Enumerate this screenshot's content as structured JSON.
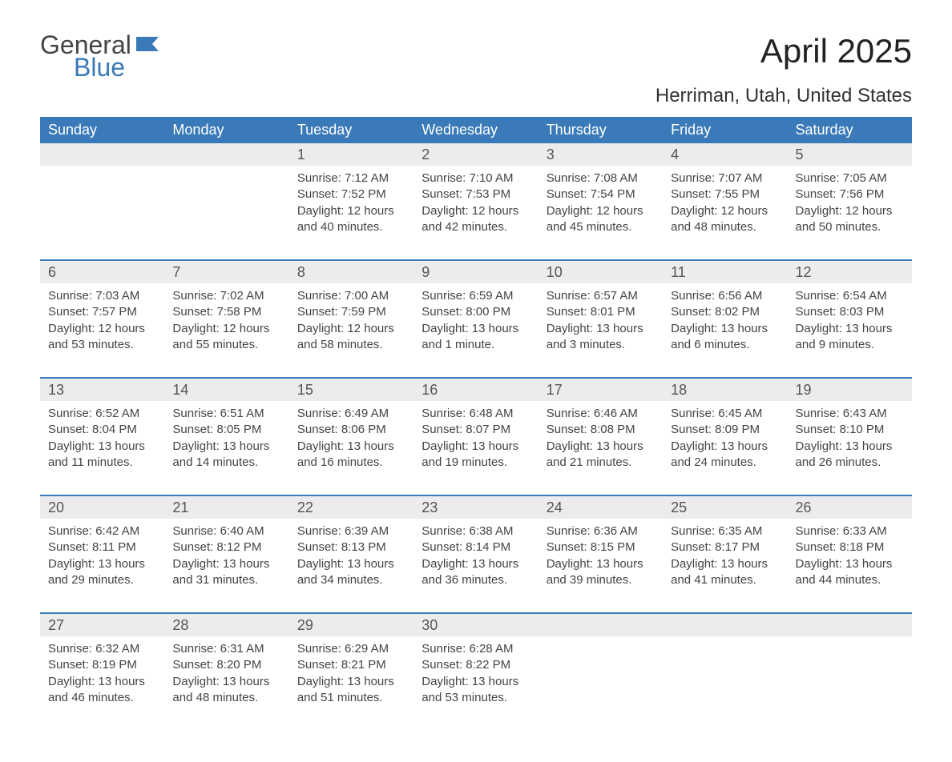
{
  "logo": {
    "general": "General",
    "blue": "Blue",
    "flag_color": "#3a7ab8"
  },
  "title": "April 2025",
  "location": "Herriman, Utah, United States",
  "day_headers": [
    "Sunday",
    "Monday",
    "Tuesday",
    "Wednesday",
    "Thursday",
    "Friday",
    "Saturday"
  ],
  "header_bg": "#3a7ab8",
  "header_fg": "#ffffff",
  "daynum_bg": "#ececec",
  "sep_color": "#3a7ab8",
  "weeks": [
    {
      "nums": [
        "",
        "",
        "1",
        "2",
        "3",
        "4",
        "5"
      ],
      "details": [
        "",
        "",
        "Sunrise: 7:12 AM\nSunset: 7:52 PM\nDaylight: 12 hours and 40 minutes.",
        "Sunrise: 7:10 AM\nSunset: 7:53 PM\nDaylight: 12 hours and 42 minutes.",
        "Sunrise: 7:08 AM\nSunset: 7:54 PM\nDaylight: 12 hours and 45 minutes.",
        "Sunrise: 7:07 AM\nSunset: 7:55 PM\nDaylight: 12 hours and 48 minutes.",
        "Sunrise: 7:05 AM\nSunset: 7:56 PM\nDaylight: 12 hours and 50 minutes."
      ]
    },
    {
      "nums": [
        "6",
        "7",
        "8",
        "9",
        "10",
        "11",
        "12"
      ],
      "details": [
        "Sunrise: 7:03 AM\nSunset: 7:57 PM\nDaylight: 12 hours and 53 minutes.",
        "Sunrise: 7:02 AM\nSunset: 7:58 PM\nDaylight: 12 hours and 55 minutes.",
        "Sunrise: 7:00 AM\nSunset: 7:59 PM\nDaylight: 12 hours and 58 minutes.",
        "Sunrise: 6:59 AM\nSunset: 8:00 PM\nDaylight: 13 hours and 1 minute.",
        "Sunrise: 6:57 AM\nSunset: 8:01 PM\nDaylight: 13 hours and 3 minutes.",
        "Sunrise: 6:56 AM\nSunset: 8:02 PM\nDaylight: 13 hours and 6 minutes.",
        "Sunrise: 6:54 AM\nSunset: 8:03 PM\nDaylight: 13 hours and 9 minutes."
      ]
    },
    {
      "nums": [
        "13",
        "14",
        "15",
        "16",
        "17",
        "18",
        "19"
      ],
      "details": [
        "Sunrise: 6:52 AM\nSunset: 8:04 PM\nDaylight: 13 hours and 11 minutes.",
        "Sunrise: 6:51 AM\nSunset: 8:05 PM\nDaylight: 13 hours and 14 minutes.",
        "Sunrise: 6:49 AM\nSunset: 8:06 PM\nDaylight: 13 hours and 16 minutes.",
        "Sunrise: 6:48 AM\nSunset: 8:07 PM\nDaylight: 13 hours and 19 minutes.",
        "Sunrise: 6:46 AM\nSunset: 8:08 PM\nDaylight: 13 hours and 21 minutes.",
        "Sunrise: 6:45 AM\nSunset: 8:09 PM\nDaylight: 13 hours and 24 minutes.",
        "Sunrise: 6:43 AM\nSunset: 8:10 PM\nDaylight: 13 hours and 26 minutes."
      ]
    },
    {
      "nums": [
        "20",
        "21",
        "22",
        "23",
        "24",
        "25",
        "26"
      ],
      "details": [
        "Sunrise: 6:42 AM\nSunset: 8:11 PM\nDaylight: 13 hours and 29 minutes.",
        "Sunrise: 6:40 AM\nSunset: 8:12 PM\nDaylight: 13 hours and 31 minutes.",
        "Sunrise: 6:39 AM\nSunset: 8:13 PM\nDaylight: 13 hours and 34 minutes.",
        "Sunrise: 6:38 AM\nSunset: 8:14 PM\nDaylight: 13 hours and 36 minutes.",
        "Sunrise: 6:36 AM\nSunset: 8:15 PM\nDaylight: 13 hours and 39 minutes.",
        "Sunrise: 6:35 AM\nSunset: 8:17 PM\nDaylight: 13 hours and 41 minutes.",
        "Sunrise: 6:33 AM\nSunset: 8:18 PM\nDaylight: 13 hours and 44 minutes."
      ]
    },
    {
      "nums": [
        "27",
        "28",
        "29",
        "30",
        "",
        "",
        ""
      ],
      "details": [
        "Sunrise: 6:32 AM\nSunset: 8:19 PM\nDaylight: 13 hours and 46 minutes.",
        "Sunrise: 6:31 AM\nSunset: 8:20 PM\nDaylight: 13 hours and 48 minutes.",
        "Sunrise: 6:29 AM\nSunset: 8:21 PM\nDaylight: 13 hours and 51 minutes.",
        "Sunrise: 6:28 AM\nSunset: 8:22 PM\nDaylight: 13 hours and 53 minutes.",
        "",
        "",
        ""
      ]
    }
  ]
}
